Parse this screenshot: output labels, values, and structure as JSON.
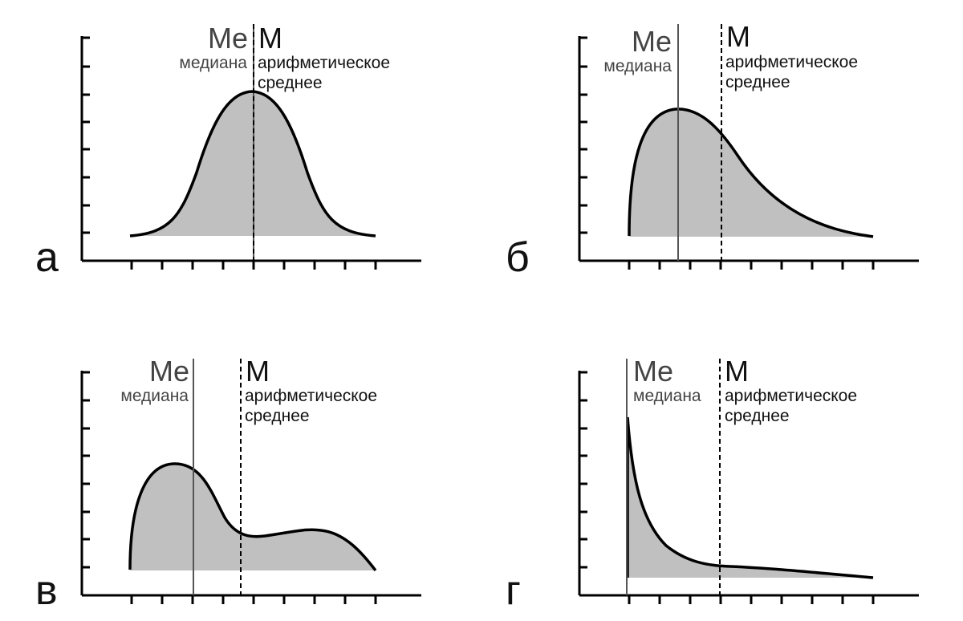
{
  "labels": {
    "median_symbol": "Me",
    "median_text": "медиана",
    "mean_symbol": "M",
    "mean_text_line1": "арифметическое",
    "mean_text_line2": "среднее"
  },
  "panels": [
    {
      "id": "a",
      "letter": "а",
      "shape": "symmetric",
      "median_x_tick": 4,
      "mean_x_tick": 4
    },
    {
      "id": "b",
      "letter": "б",
      "shape": "right-skewed",
      "median_x_tick": 1.6,
      "mean_x_tick": 3.1
    },
    {
      "id": "c",
      "letter": "в",
      "shape": "bimodal",
      "median_x_tick": 2.0,
      "mean_x_tick": 3.5
    },
    {
      "id": "d",
      "letter": "г",
      "shape": "J-shaped",
      "median_x_tick": 0,
      "mean_x_tick": 3.05
    }
  ],
  "colors": {
    "fill": "#c0c0c0",
    "curve": "#000000",
    "median_line": "#555555",
    "mean_line": "#000000",
    "median_text": "#444444"
  }
}
